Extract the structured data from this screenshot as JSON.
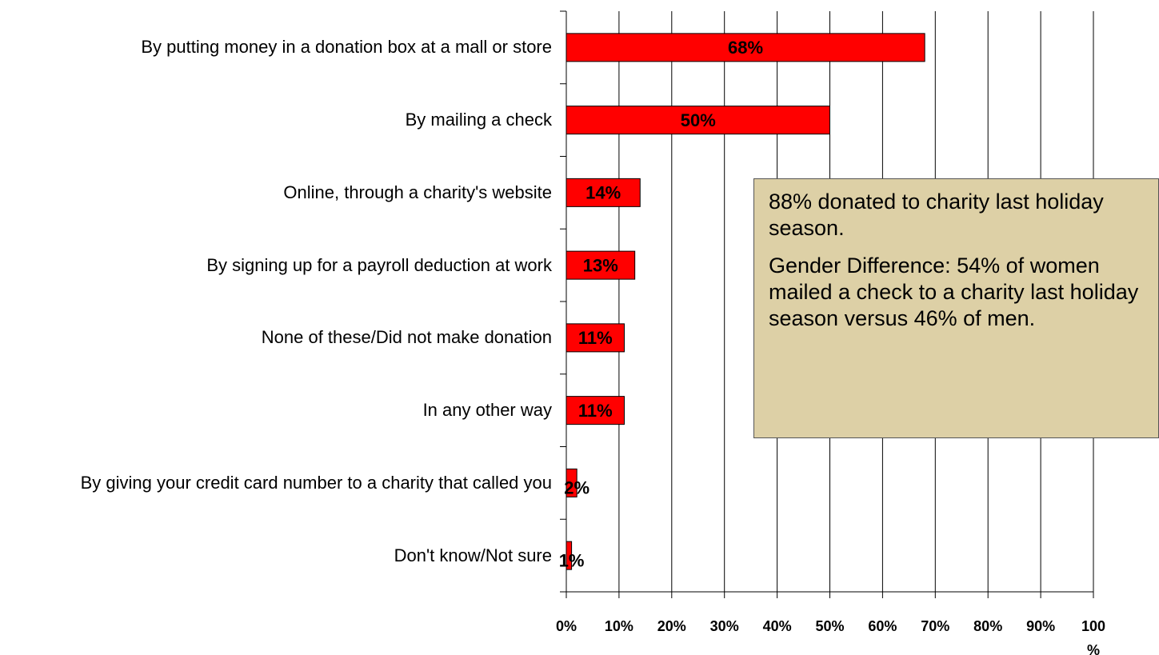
{
  "chart_data": {
    "type": "bar",
    "orientation": "horizontal",
    "categories": [
      "By putting money in a donation box at a mall or store",
      "By mailing a check",
      "Online, through a charity's website",
      "By signing up for a payroll deduction at work",
      "None of these/Did not make donation",
      "In any other way",
      "By giving your credit card number to a charity that called you",
      "Don't know/Not sure"
    ],
    "values": [
      68,
      50,
      14,
      13,
      11,
      11,
      2,
      1
    ],
    "value_labels": [
      "68%",
      "50%",
      "14%",
      "13%",
      "11%",
      "11%",
      "2%",
      "1%"
    ],
    "color": "#ff0000",
    "xlim": [
      0,
      100
    ],
    "xticks": [
      {
        "value": 0,
        "label": "0%"
      },
      {
        "value": 10,
        "label": "10%"
      },
      {
        "value": 20,
        "label": "20%"
      },
      {
        "value": 30,
        "label": "30%"
      },
      {
        "value": 40,
        "label": "40%"
      },
      {
        "value": 50,
        "label": "50%"
      },
      {
        "value": 60,
        "label": "60%"
      },
      {
        "value": 70,
        "label": "70%"
      },
      {
        "value": 80,
        "label": "80%"
      },
      {
        "value": 90,
        "label": "90%"
      },
      {
        "value": 100,
        "label": "100%"
      }
    ],
    "grid": true,
    "annotations": [
      "88% donated to charity last holiday season.",
      "Gender Difference:  54% of women mailed a check to a charity last holiday season versus 46% of men."
    ]
  }
}
